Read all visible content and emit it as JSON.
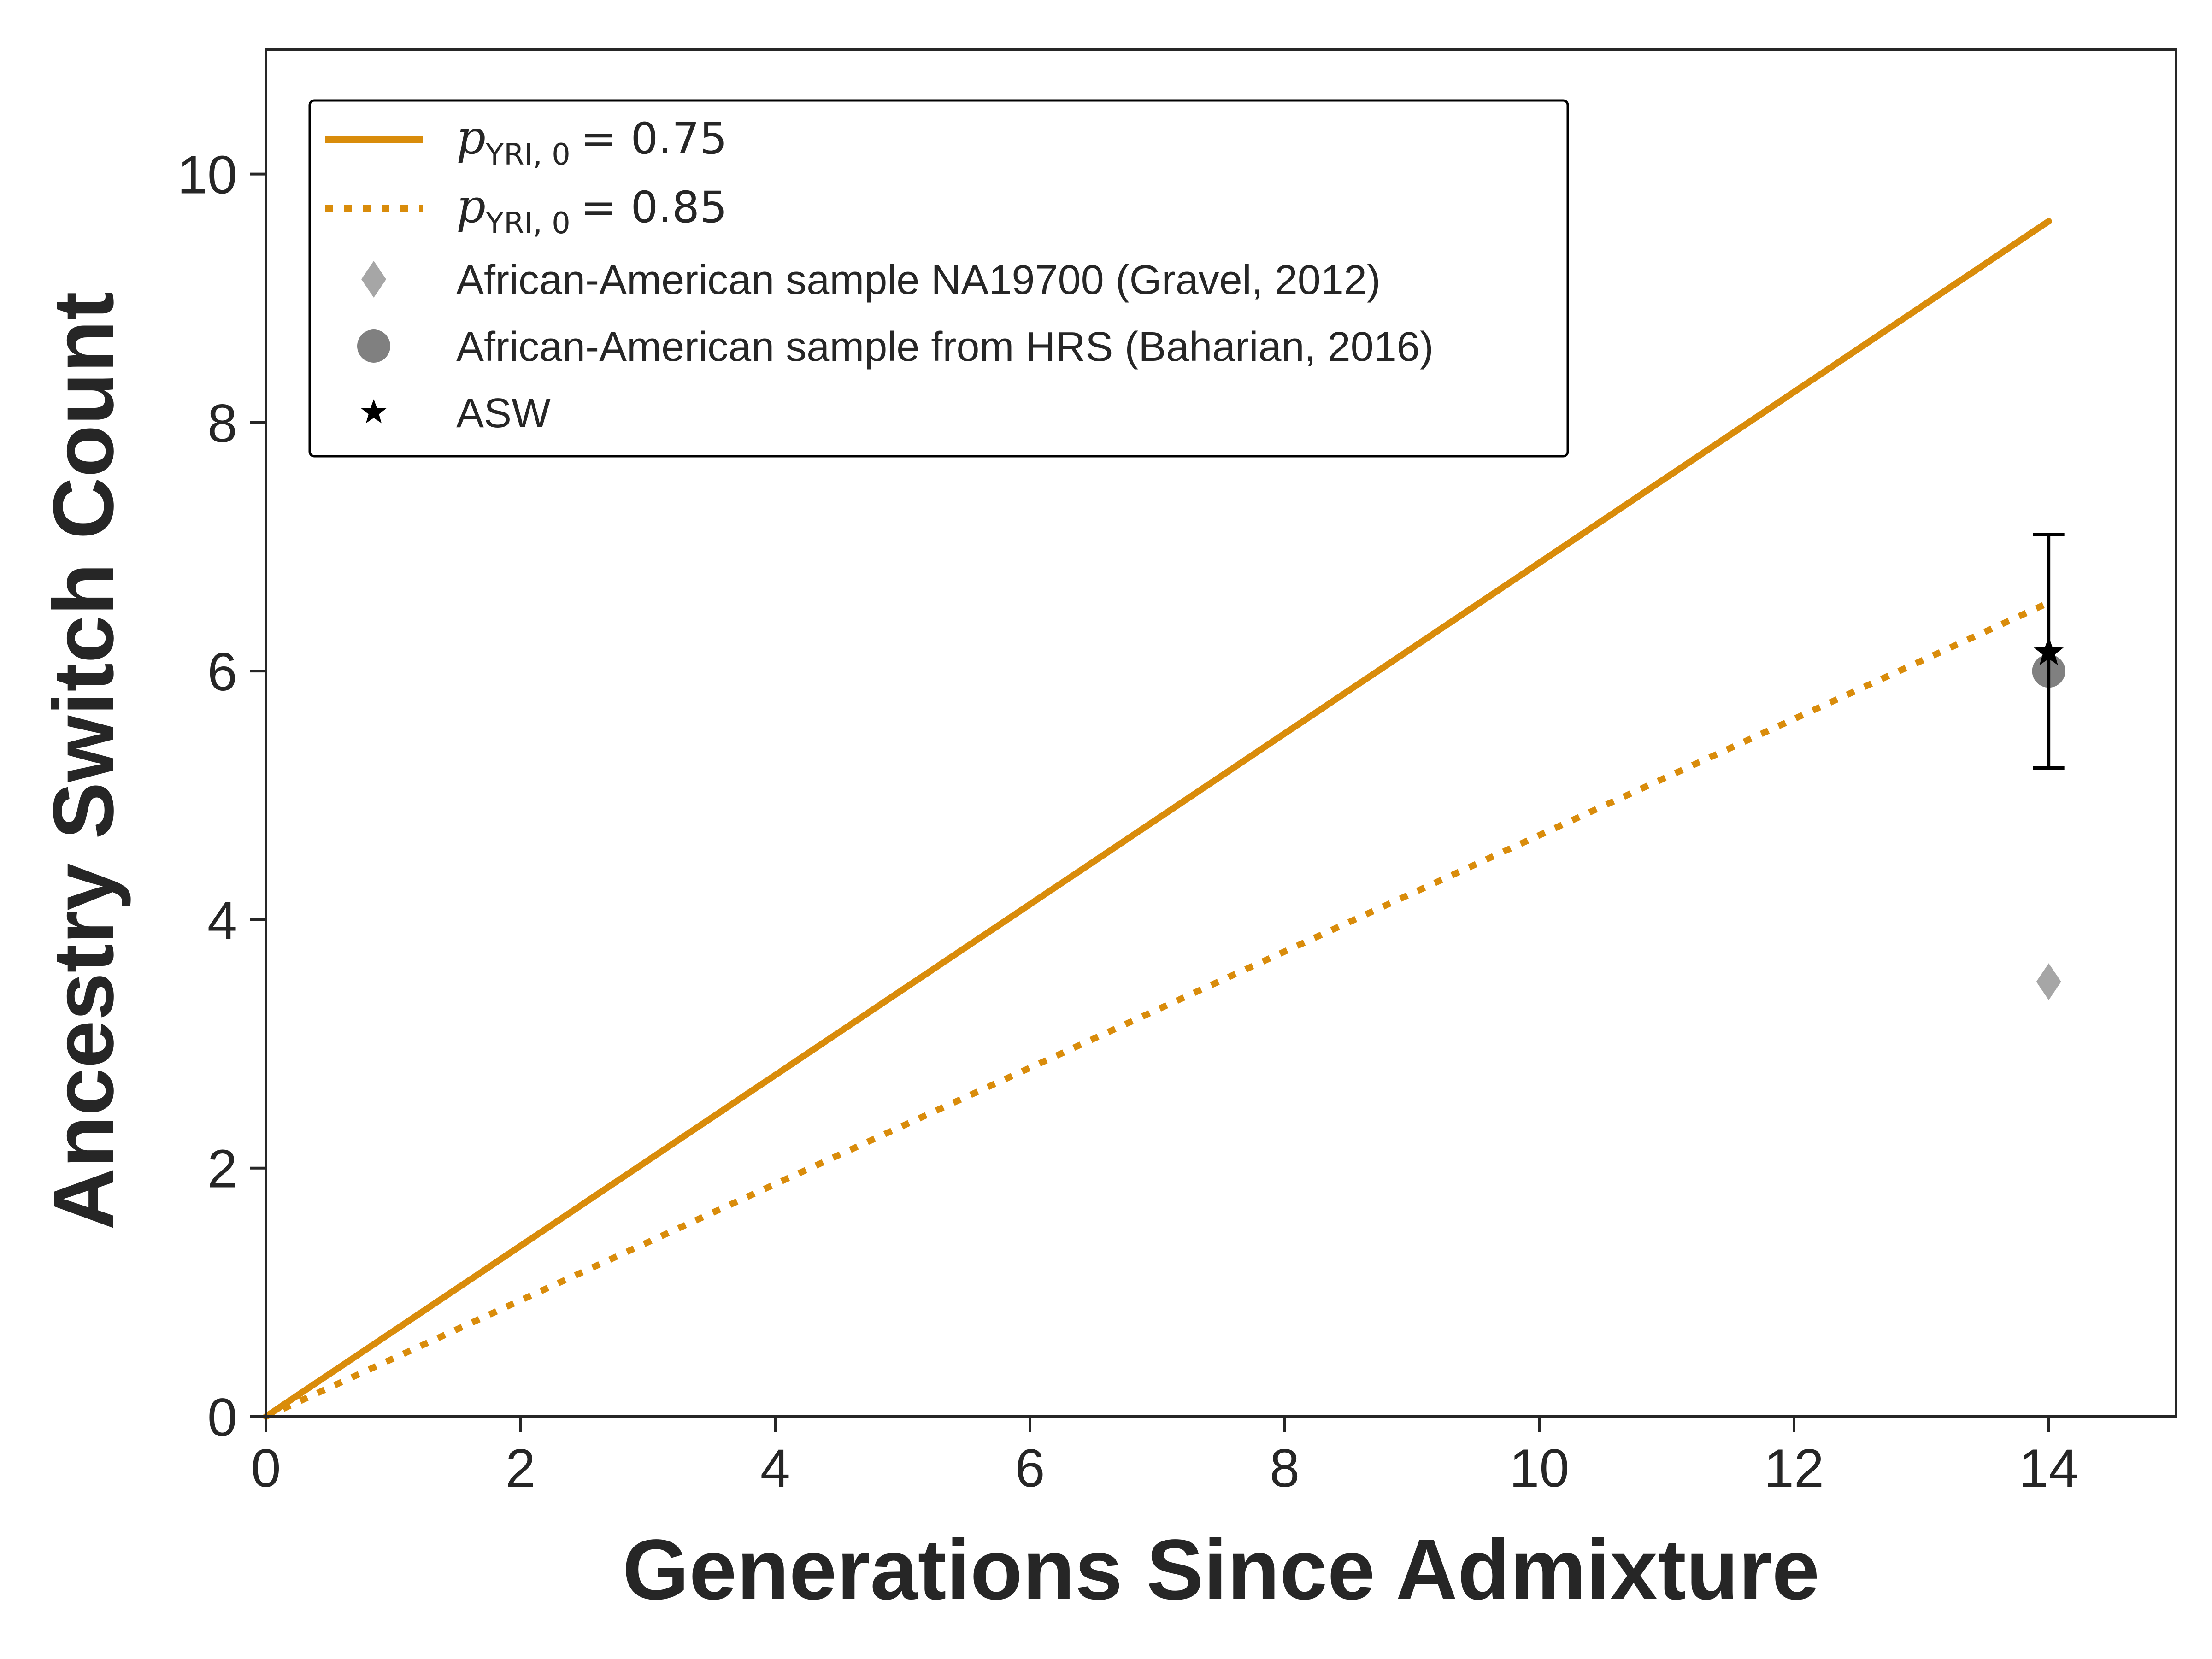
{
  "chart_data": {
    "type": "line",
    "xlabel": "Generations Since Admixture",
    "ylabel": "Ancestry Switch Count",
    "xlim": [
      0,
      15
    ],
    "ylim": [
      0,
      11
    ],
    "xticks": [
      "0",
      "2",
      "4",
      "6",
      "8",
      "10",
      "12",
      "14"
    ],
    "yticks": [
      "0",
      "2",
      "4",
      "6",
      "8",
      "10"
    ],
    "grid": false,
    "legend_position": "upper-left",
    "series": [
      {
        "name_parts": {
          "var": "p",
          "sub": "YRI, 0",
          "rest": "= 0.75"
        },
        "style": "solid",
        "color": "#D98C0B",
        "x": [
          0,
          14
        ],
        "y": [
          0,
          9.62
        ]
      },
      {
        "name_parts": {
          "var": "p",
          "sub": "YRI, 0",
          "rest": "= 0.85"
        },
        "style": "dotted",
        "color": "#D98C0B",
        "x": [
          0,
          14
        ],
        "y": [
          0,
          6.55
        ]
      }
    ],
    "points": [
      {
        "name": "African-American sample NA19700 (Gravel, 2012)",
        "marker": "diamond",
        "color": "#A6A6A6",
        "x": 14,
        "y": 3.5
      },
      {
        "name": "African-American sample from HRS (Baharian, 2016)",
        "marker": "circle",
        "color": "#808080",
        "x": 14,
        "y": 6.0
      },
      {
        "name": "ASW",
        "marker": "star",
        "color": "#000000",
        "x": 14,
        "y": 6.15,
        "error": [
          5.22,
          7.1
        ]
      }
    ]
  }
}
